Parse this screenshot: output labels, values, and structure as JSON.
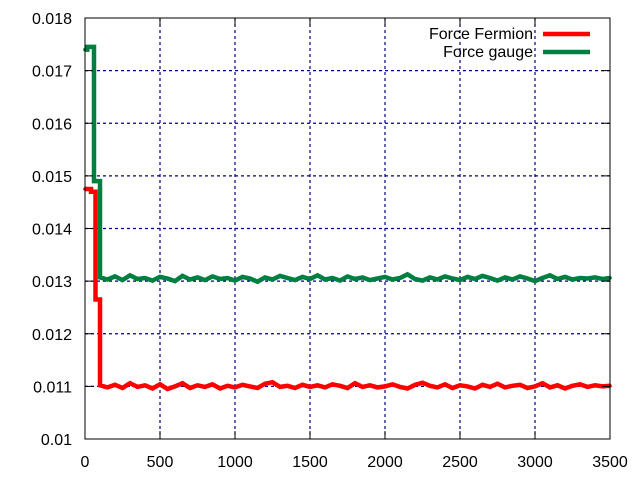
{
  "chart_data": {
    "type": "line",
    "title": "",
    "xlabel": "",
    "ylabel": "",
    "xlim": [
      0,
      3500
    ],
    "ylim": [
      0.01,
      0.018
    ],
    "xticks": [
      0,
      500,
      1000,
      1500,
      2000,
      2500,
      3000,
      3500
    ],
    "xtick_labels": [
      "0",
      "500",
      "1000",
      "1500",
      "2000",
      "2500",
      "3000",
      "3500"
    ],
    "yticks": [
      0.01,
      0.011,
      0.012,
      0.013,
      0.014,
      0.015,
      0.016,
      0.017,
      0.018
    ],
    "ytick_labels": [
      "0.01",
      "0.011",
      "0.012",
      "0.013",
      "0.014",
      "0.015",
      "0.016",
      "0.017",
      "0.018"
    ],
    "grid": true,
    "grid_style": "dashed",
    "legend_position": "top-right",
    "series": [
      {
        "name": "Force Fermion",
        "color": "#ff0000",
        "x": [
          0,
          40,
          40,
          70,
          70,
          100,
          100,
          150,
          200,
          250,
          300,
          350,
          400,
          450,
          500,
          550,
          600,
          650,
          700,
          750,
          800,
          850,
          900,
          950,
          1000,
          1050,
          1100,
          1150,
          1200,
          1250,
          1300,
          1350,
          1400,
          1450,
          1500,
          1550,
          1600,
          1650,
          1700,
          1750,
          1800,
          1850,
          1900,
          1950,
          2000,
          2050,
          2100,
          2150,
          2200,
          2250,
          2300,
          2350,
          2400,
          2450,
          2500,
          2550,
          2600,
          2650,
          2700,
          2750,
          2800,
          2850,
          2900,
          2950,
          3000,
          3050,
          3100,
          3150,
          3200,
          3250,
          3300,
          3350,
          3400,
          3450,
          3500
        ],
        "y": [
          0.01475,
          0.01475,
          0.0147,
          0.0147,
          0.01265,
          0.01265,
          0.01102,
          0.01098,
          0.01103,
          0.01097,
          0.01106,
          0.01099,
          0.01102,
          0.01096,
          0.01104,
          0.01095,
          0.011,
          0.01106,
          0.01097,
          0.01102,
          0.01099,
          0.01104,
          0.01096,
          0.01101,
          0.01098,
          0.01103,
          0.011,
          0.01097,
          0.01105,
          0.01108,
          0.01099,
          0.01101,
          0.01097,
          0.01103,
          0.01099,
          0.01102,
          0.01098,
          0.01104,
          0.01101,
          0.01097,
          0.01106,
          0.01099,
          0.01102,
          0.01098,
          0.011,
          0.01104,
          0.01099,
          0.01096,
          0.01103,
          0.01107,
          0.01101,
          0.01098,
          0.01104,
          0.01097,
          0.01102,
          0.011,
          0.01096,
          0.01103,
          0.01099,
          0.01105,
          0.01098,
          0.01101,
          0.01103,
          0.01097,
          0.011,
          0.01106,
          0.01098,
          0.01102,
          0.01096,
          0.01101,
          0.01104,
          0.01099,
          0.01102,
          0.011,
          0.01101
        ]
      },
      {
        "name": "Force gauge",
        "color": "#008040",
        "x": [
          0,
          15,
          15,
          60,
          60,
          100,
          100,
          150,
          200,
          250,
          300,
          350,
          400,
          450,
          500,
          550,
          600,
          650,
          700,
          750,
          800,
          850,
          900,
          950,
          1000,
          1050,
          1100,
          1150,
          1200,
          1250,
          1300,
          1350,
          1400,
          1450,
          1500,
          1550,
          1600,
          1650,
          1700,
          1750,
          1800,
          1850,
          1900,
          1950,
          2000,
          2050,
          2100,
          2150,
          2200,
          2250,
          2300,
          2350,
          2400,
          2450,
          2500,
          2550,
          2600,
          2650,
          2700,
          2750,
          2800,
          2850,
          2900,
          2950,
          3000,
          3050,
          3100,
          3150,
          3200,
          3250,
          3300,
          3350,
          3400,
          3450,
          3500
        ],
        "y": [
          0.0174,
          0.0174,
          0.01745,
          0.01745,
          0.0149,
          0.0149,
          0.01307,
          0.01303,
          0.01309,
          0.01302,
          0.01311,
          0.01304,
          0.01306,
          0.01301,
          0.01308,
          0.01305,
          0.013,
          0.0131,
          0.01303,
          0.01307,
          0.01302,
          0.01309,
          0.01304,
          0.01306,
          0.01301,
          0.01308,
          0.01305,
          0.01299,
          0.01307,
          0.01303,
          0.0131,
          0.01306,
          0.01302,
          0.01308,
          0.01304,
          0.01311,
          0.01303,
          0.01306,
          0.01301,
          0.01309,
          0.01304,
          0.01307,
          0.01302,
          0.01305,
          0.01308,
          0.01303,
          0.01306,
          0.01313,
          0.01304,
          0.01301,
          0.01307,
          0.01303,
          0.01309,
          0.01305,
          0.01302,
          0.01308,
          0.01304,
          0.0131,
          0.01306,
          0.01301,
          0.01307,
          0.01303,
          0.01309,
          0.01305,
          0.013,
          0.01306,
          0.01311,
          0.01304,
          0.01308,
          0.01303,
          0.01306,
          0.01305,
          0.01307,
          0.01304,
          0.01306
        ]
      }
    ]
  }
}
